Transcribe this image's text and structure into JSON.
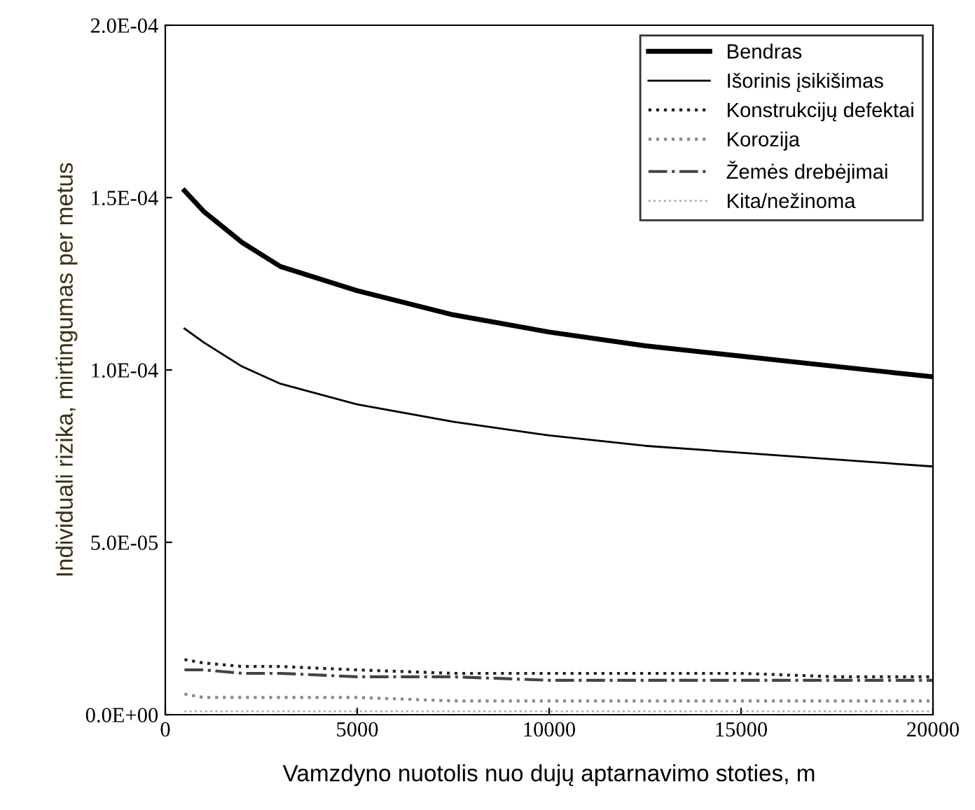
{
  "chart_data": {
    "type": "line",
    "xlabel": "Vamzdyno nuotolis nuo dujų aptarnavimo stoties, m",
    "ylabel": "Individuali rizika, mirtingumas per metus",
    "x": [
      500,
      1000,
      2000,
      3000,
      5000,
      7500,
      10000,
      12500,
      15000,
      17500,
      20000
    ],
    "series": [
      {
        "name": "Bendras",
        "color": "#000000",
        "line_style": "solid",
        "values": [
          0.000152,
          0.000146,
          0.000137,
          0.00013,
          0.000123,
          0.000116,
          0.000111,
          0.000107,
          0.000104,
          0.000101,
          9.8e-05
        ]
      },
      {
        "name": "Išorinis įsikišimas",
        "color": "#000000",
        "line_style": "solid",
        "values": [
          0.000112,
          0.000108,
          0.000101,
          9.6e-05,
          9e-05,
          8.5e-05,
          8.1e-05,
          7.8e-05,
          7.6e-05,
          7.4e-05,
          7.2e-05
        ]
      },
      {
        "name": "Konstrukcijų defektai",
        "color": "#222222",
        "line_style": "dotted",
        "values": [
          1.6e-05,
          1.5e-05,
          1.4e-05,
          1.4e-05,
          1.3e-05,
          1.2e-05,
          1.2e-05,
          1.2e-05,
          1.2e-05,
          1.1e-05,
          1.1e-05
        ]
      },
      {
        "name": "Korozija",
        "color": "#888888",
        "line_style": "dotted",
        "values": [
          6e-06,
          5e-06,
          5e-06,
          5e-06,
          5e-06,
          4e-06,
          4e-06,
          4e-06,
          4e-06,
          4e-06,
          4e-06
        ]
      },
      {
        "name": "Žemės drebėjimai",
        "color": "#444444",
        "line_style": "dashdot",
        "values": [
          1.3e-05,
          1.3e-05,
          1.2e-05,
          1.2e-05,
          1.1e-05,
          1.1e-05,
          1e-05,
          1e-05,
          1e-05,
          1e-05,
          1e-05
        ]
      },
      {
        "name": "Kita/nežinoma",
        "color": "#aaaaaa",
        "line_style": "dotted",
        "values": [
          1e-06,
          1e-06,
          1e-06,
          1e-06,
          1e-06,
          1e-06,
          1e-06,
          1e-06,
          1e-06,
          1e-06,
          1e-06
        ]
      }
    ],
    "xlim": [
      0,
      20000
    ],
    "xticks": [
      0,
      5000,
      10000,
      15000,
      20000
    ],
    "ylim": [
      0,
      0.0002
    ],
    "yticks": [
      {
        "value": 0,
        "label": "0.0E+00"
      },
      {
        "value": 5e-05,
        "label": "5.0E-05"
      },
      {
        "value": 0.0001,
        "label": "1.0E-04"
      },
      {
        "value": 0.00015,
        "label": "1.5E-04"
      },
      {
        "value": 0.0002,
        "label": "2.0E-04"
      }
    ],
    "legend": "top right",
    "grid": false,
    "marker": "none"
  }
}
